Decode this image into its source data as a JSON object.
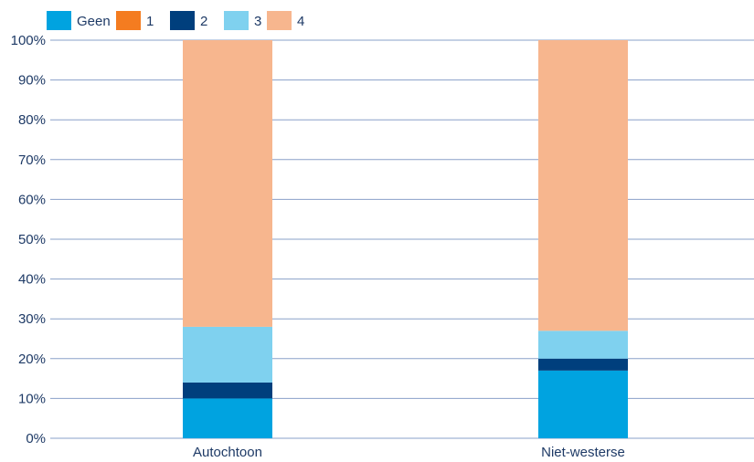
{
  "chart_data": {
    "type": "bar",
    "stacked": true,
    "categories": [
      "Autochtoon",
      "Niet-westerse"
    ],
    "series": [
      {
        "name": "Geen",
        "color": "#00a3e0",
        "values": [
          10,
          17
        ]
      },
      {
        "name": "1",
        "color": "#f47c20",
        "values": [
          0,
          0
        ]
      },
      {
        "name": "2",
        "color": "#003f7d",
        "values": [
          4,
          3
        ]
      },
      {
        "name": "3",
        "color": "#7fd1ef",
        "values": [
          14,
          7
        ]
      },
      {
        "name": "4",
        "color": "#f7b68e",
        "values": [
          72,
          73
        ]
      }
    ],
    "yticks": [
      "0%",
      "10%",
      "20%",
      "30%",
      "40%",
      "50%",
      "60%",
      "70%",
      "80%",
      "90%",
      "100%"
    ],
    "ylim": [
      0,
      100
    ],
    "grid": true,
    "legend_position": "top-left",
    "title": "",
    "xlabel": "",
    "ylabel": ""
  },
  "colors": {
    "grid": "#8aa0c8",
    "text": "#1e3a66"
  }
}
